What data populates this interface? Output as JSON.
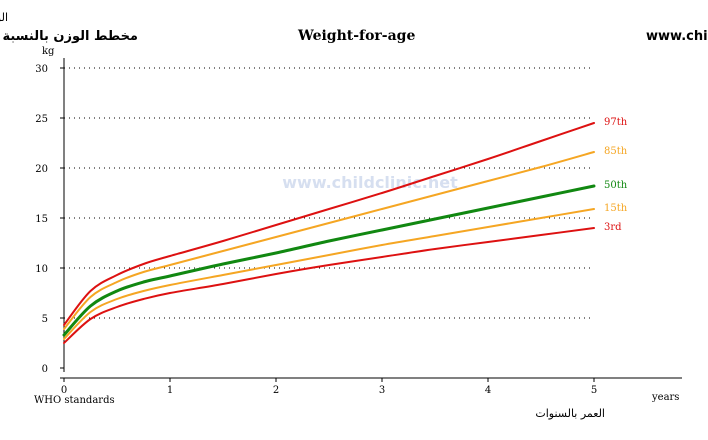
{
  "chart_data": {
    "type": "line",
    "title": "مخطط الوزن بالنسبة للعمر      Weight-for-age عيادة طب الأطفال - www.childclinic.net",
    "title_ar": "مخطط الوزن بالنسبة للعمر",
    "title_en": "Weight-for-age",
    "title_site": "عيادة طب الأطفال - www.childclinic.net",
    "watermark": "www.childclinic.net",
    "ylabel_ar": "الوزن بالكغ",
    "yunit": "kg",
    "xunit": "years",
    "xlabel_ar": "العمر بالسنوات",
    "source_note": "WHO standards",
    "xlim": [
      0,
      5
    ],
    "ylim": [
      0,
      30
    ],
    "xticks": [
      0,
      1,
      2,
      3,
      4,
      5
    ],
    "yticks": [
      0,
      5,
      10,
      15,
      20,
      25,
      30
    ],
    "grid": "horizontal dotted",
    "x": [
      0,
      0.25,
      0.5,
      0.75,
      1,
      1.5,
      2,
      2.5,
      3,
      3.5,
      4,
      4.5,
      5
    ],
    "series": [
      {
        "name": "97th",
        "color": "#dd1111",
        "width": 2,
        "values": [
          4.3,
          7.7,
          9.3,
          10.4,
          11.2,
          12.7,
          14.3,
          15.9,
          17.5,
          19.2,
          20.9,
          22.7,
          24.5
        ]
      },
      {
        "name": "85th",
        "color": "#f5a623",
        "width": 2,
        "values": [
          3.9,
          7.1,
          8.6,
          9.6,
          10.3,
          11.7,
          13.1,
          14.5,
          15.9,
          17.3,
          18.7,
          20.1,
          21.6
        ]
      },
      {
        "name": "50th",
        "color": "#118811",
        "width": 3,
        "values": [
          3.3,
          6.2,
          7.7,
          8.6,
          9.2,
          10.4,
          11.5,
          12.7,
          13.8,
          14.9,
          16.0,
          17.1,
          18.2
        ]
      },
      {
        "name": "15th",
        "color": "#f5a623",
        "width": 2,
        "values": [
          2.9,
          5.6,
          6.9,
          7.7,
          8.3,
          9.3,
          10.3,
          11.3,
          12.3,
          13.2,
          14.1,
          15.0,
          15.9
        ]
      },
      {
        "name": "3rd",
        "color": "#dd1111",
        "width": 2,
        "values": [
          2.5,
          4.9,
          6.1,
          6.9,
          7.5,
          8.4,
          9.4,
          10.3,
          11.1,
          11.9,
          12.6,
          13.3,
          14.0
        ]
      }
    ]
  }
}
